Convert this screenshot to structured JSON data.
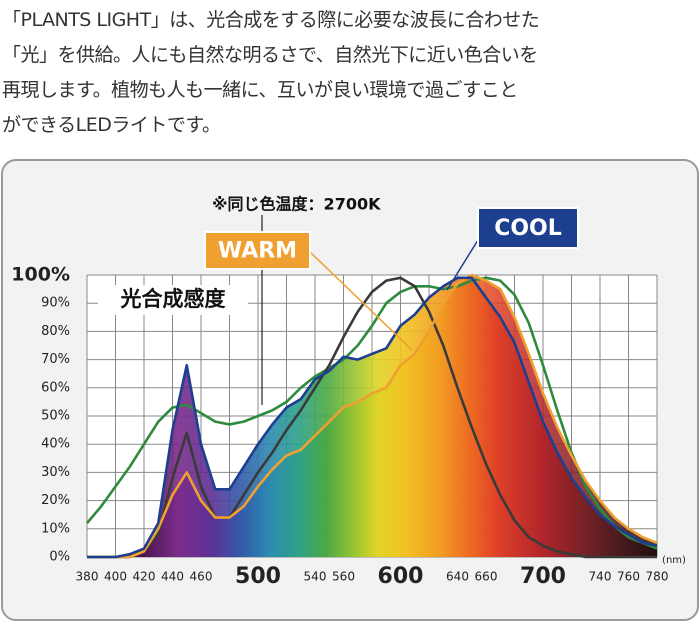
{
  "description": [
    "「PLANTS LIGHT」は、光合成をする際に必要な波長に合わせた",
    "「光」を供給。人にも自然な明るさで、自然光下に近い色合いを",
    "再現します。植物も人も一緒に、互いが良い環境で過ごすこと",
    "ができるLEDライトです。"
  ],
  "chart_data": {
    "type": "line",
    "annotation": "※同じ色温度：2700K",
    "x_unit": "(nm)",
    "x": [
      380,
      390,
      400,
      410,
      420,
      430,
      440,
      450,
      460,
      470,
      480,
      490,
      500,
      510,
      520,
      530,
      540,
      550,
      560,
      570,
      580,
      590,
      600,
      610,
      620,
      630,
      640,
      650,
      660,
      670,
      680,
      690,
      700,
      710,
      720,
      730,
      740,
      750,
      760,
      770,
      780
    ],
    "series": [
      {
        "name": "COOL",
        "color": "#1d3f8f",
        "values": [
          0,
          0,
          0,
          1,
          3,
          12,
          45,
          68,
          40,
          24,
          24,
          32,
          40,
          47,
          53,
          56,
          63,
          66,
          71,
          70,
          72,
          74,
          82,
          86,
          92,
          96,
          99,
          99,
          92,
          85,
          76,
          62,
          48,
          37,
          28,
          21,
          15,
          11,
          8,
          5,
          4
        ]
      },
      {
        "name": "WARM",
        "color": "#f0a030",
        "values": [
          0,
          0,
          0,
          0,
          2,
          10,
          22,
          30,
          20,
          14,
          14,
          18,
          25,
          31,
          36,
          38,
          43,
          48,
          53,
          55,
          58,
          60,
          68,
          72,
          80,
          90,
          97,
          100,
          98,
          95,
          85,
          72,
          58,
          46,
          36,
          27,
          20,
          14,
          10,
          7,
          5
        ]
      },
      {
        "name": "光合成感度",
        "color": "#2e8b3e",
        "values": [
          12,
          18,
          25,
          32,
          40,
          48,
          53,
          54,
          51,
          48,
          47,
          48,
          50,
          52,
          55,
          60,
          64,
          67,
          70,
          75,
          82,
          90,
          94,
          96,
          96,
          95,
          96,
          98,
          99,
          98,
          93,
          83,
          68,
          52,
          37,
          25,
          17,
          11,
          7,
          5,
          3
        ]
      },
      {
        "color": "#3a3a3a",
        "values": [
          0,
          0,
          0,
          0,
          2,
          8,
          28,
          44,
          25,
          14,
          14,
          22,
          30,
          37,
          45,
          52,
          60,
          68,
          78,
          87,
          94,
          98,
          99,
          96,
          87,
          75,
          60,
          46,
          33,
          22,
          13,
          7,
          4,
          2,
          1,
          0,
          0,
          0,
          0,
          0,
          0
        ]
      }
    ],
    "xlim": [
      380,
      780
    ],
    "xticks": [
      380,
      400,
      420,
      440,
      460,
      500,
      540,
      560,
      600,
      640,
      660,
      700,
      740,
      760,
      780
    ],
    "xgrid_step": 20,
    "ylim": [
      0,
      100
    ],
    "yticks": [
      {
        "value": 0,
        "label": "0%"
      },
      {
        "value": 10,
        "label": "10%"
      },
      {
        "value": 20,
        "label": "20%"
      },
      {
        "value": 30,
        "label": "30%"
      },
      {
        "value": 40,
        "label": "40%"
      },
      {
        "value": 50,
        "label": "50%"
      },
      {
        "value": 60,
        "label": "60%"
      },
      {
        "value": 70,
        "label": "70%"
      },
      {
        "value": 80,
        "label": "80%"
      },
      {
        "value": 90,
        "label": "90%"
      },
      {
        "value": 100,
        "label": "100%"
      }
    ],
    "grid": true
  }
}
